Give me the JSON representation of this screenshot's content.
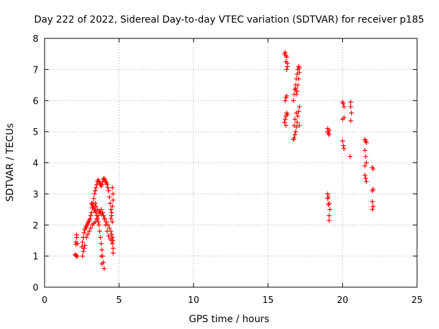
{
  "chart_data": {
    "type": "scatter",
    "title": "Day 222 of 2022, Sidereal Day-to-day VTEC variation (SDTVAR) for receiver p185",
    "xlabel": "GPS time / hours",
    "ylabel": "SDTVAR / TECUs",
    "xlim": [
      0,
      25
    ],
    "ylim": [
      0,
      8
    ],
    "xticks": [
      0,
      5,
      10,
      15,
      20,
      25
    ],
    "yticks": [
      0,
      1,
      2,
      3,
      4,
      5,
      6,
      7,
      8
    ],
    "grid": true,
    "marker": "+",
    "color": "#ff0000",
    "series": [
      {
        "name": "SDTVAR",
        "points": [
          [
            2.05,
            1.05
          ],
          [
            2.1,
            1.02
          ],
          [
            2.15,
            1.0
          ],
          [
            2.2,
            1.0
          ],
          [
            2.1,
            1.38
          ],
          [
            2.1,
            1.45
          ],
          [
            2.15,
            1.6
          ],
          [
            2.15,
            1.68
          ],
          [
            2.2,
            1.4
          ],
          [
            2.5,
            1.3
          ],
          [
            2.55,
            1.45
          ],
          [
            2.6,
            1.6
          ],
          [
            2.65,
            1.75
          ],
          [
            2.7,
            1.85
          ],
          [
            2.75,
            1.9
          ],
          [
            2.8,
            1.95
          ],
          [
            2.85,
            2.0
          ],
          [
            2.9,
            2.05
          ],
          [
            2.95,
            2.1
          ],
          [
            3.0,
            2.15
          ],
          [
            3.05,
            2.2
          ],
          [
            3.1,
            2.3
          ],
          [
            3.15,
            2.4
          ],
          [
            3.2,
            2.55
          ],
          [
            3.25,
            2.7
          ],
          [
            3.3,
            2.85
          ],
          [
            3.35,
            3.0
          ],
          [
            3.4,
            3.1
          ],
          [
            3.45,
            3.2
          ],
          [
            3.5,
            3.3
          ],
          [
            3.55,
            3.4
          ],
          [
            3.6,
            3.45
          ],
          [
            3.65,
            3.4
          ],
          [
            3.7,
            3.35
          ],
          [
            3.75,
            3.3
          ],
          [
            3.8,
            3.25
          ],
          [
            3.85,
            3.3
          ],
          [
            3.9,
            3.4
          ],
          [
            3.95,
            3.48
          ],
          [
            4.0,
            3.5
          ],
          [
            4.05,
            3.45
          ],
          [
            4.1,
            3.4
          ],
          [
            4.15,
            3.35
          ],
          [
            4.2,
            3.3
          ],
          [
            4.25,
            3.2
          ],
          [
            4.3,
            3.1
          ],
          [
            4.35,
            2.9
          ],
          [
            4.4,
            2.7
          ],
          [
            4.45,
            2.5
          ],
          [
            4.5,
            2.3
          ],
          [
            4.55,
            2.1
          ],
          [
            2.55,
            1.0
          ],
          [
            2.6,
            1.15
          ],
          [
            2.65,
            1.25
          ],
          [
            2.7,
            1.35
          ],
          [
            2.8,
            1.6
          ],
          [
            2.9,
            1.7
          ],
          [
            3.0,
            1.8
          ],
          [
            3.1,
            1.9
          ],
          [
            3.2,
            2.0
          ],
          [
            3.3,
            2.05
          ],
          [
            3.4,
            2.1
          ],
          [
            3.5,
            2.2
          ],
          [
            3.6,
            2.3
          ],
          [
            3.7,
            2.4
          ],
          [
            3.8,
            2.5
          ],
          [
            3.9,
            2.4
          ],
          [
            4.0,
            2.2
          ],
          [
            4.1,
            2.0
          ],
          [
            4.2,
            1.8
          ],
          [
            4.3,
            1.65
          ],
          [
            4.4,
            1.55
          ],
          [
            4.5,
            1.5
          ],
          [
            4.55,
            1.4
          ],
          [
            3.15,
            2.7
          ],
          [
            3.2,
            2.65
          ],
          [
            3.25,
            2.6
          ],
          [
            3.3,
            2.55
          ],
          [
            3.35,
            2.5
          ],
          [
            3.4,
            2.45
          ],
          [
            3.45,
            2.4
          ],
          [
            3.5,
            2.3
          ],
          [
            3.55,
            2.2
          ],
          [
            3.6,
            2.1
          ],
          [
            3.65,
            2.0
          ],
          [
            3.7,
            1.8
          ],
          [
            3.75,
            1.6
          ],
          [
            3.8,
            1.4
          ],
          [
            3.85,
            1.2
          ],
          [
            3.9,
            1.0
          ],
          [
            3.95,
            0.8
          ],
          [
            4.0,
            0.6
          ],
          [
            3.8,
            1.0
          ],
          [
            3.85,
            0.75
          ],
          [
            3.4,
            2.7
          ],
          [
            3.45,
            2.6
          ],
          [
            3.55,
            2.5
          ],
          [
            3.65,
            2.45
          ],
          [
            3.75,
            2.4
          ],
          [
            3.85,
            2.35
          ],
          [
            3.95,
            2.3
          ],
          [
            4.05,
            2.2
          ],
          [
            4.15,
            2.1
          ],
          [
            4.25,
            2.0
          ],
          [
            4.35,
            1.9
          ],
          [
            4.45,
            1.8
          ],
          [
            4.5,
            1.7
          ],
          [
            4.55,
            1.6
          ],
          [
            4.6,
            1.5
          ],
          [
            4.6,
            1.25
          ],
          [
            4.6,
            1.1
          ],
          [
            4.45,
            2.2
          ],
          [
            4.5,
            2.4
          ],
          [
            4.55,
            2.6
          ],
          [
            4.6,
            2.8
          ],
          [
            4.6,
            3.0
          ],
          [
            4.55,
            3.2
          ],
          [
            16.1,
            7.5
          ],
          [
            16.15,
            7.55
          ],
          [
            16.2,
            7.45
          ],
          [
            16.25,
            7.4
          ],
          [
            16.3,
            7.2
          ],
          [
            16.3,
            7.1
          ],
          [
            16.25,
            7.0
          ],
          [
            16.2,
            7.25
          ],
          [
            16.1,
            5.3
          ],
          [
            16.15,
            5.4
          ],
          [
            16.2,
            5.5
          ],
          [
            16.25,
            5.6
          ],
          [
            16.3,
            5.55
          ],
          [
            16.2,
            5.2
          ],
          [
            16.15,
            6.0
          ],
          [
            16.2,
            6.1
          ],
          [
            16.25,
            6.15
          ],
          [
            16.7,
            4.75
          ],
          [
            16.75,
            4.8
          ],
          [
            16.8,
            4.9
          ],
          [
            16.85,
            5.0
          ],
          [
            16.9,
            5.15
          ],
          [
            16.95,
            5.3
          ],
          [
            17.0,
            5.5
          ],
          [
            17.05,
            5.65
          ],
          [
            17.1,
            5.8
          ],
          [
            17.1,
            5.2
          ],
          [
            16.7,
            6.0
          ],
          [
            16.75,
            6.2
          ],
          [
            16.8,
            6.35
          ],
          [
            16.85,
            6.5
          ],
          [
            16.9,
            6.7
          ],
          [
            16.95,
            6.85
          ],
          [
            17.0,
            7.0
          ],
          [
            17.05,
            7.1
          ],
          [
            17.1,
            7.05
          ],
          [
            17.1,
            6.9
          ],
          [
            17.05,
            6.7
          ],
          [
            17.0,
            6.5
          ],
          [
            16.95,
            6.3
          ],
          [
            16.9,
            6.2
          ],
          [
            16.85,
            6.4
          ],
          [
            16.8,
            5.4
          ],
          [
            16.75,
            5.2
          ],
          [
            16.9,
            5.6
          ],
          [
            19.0,
            5.0
          ],
          [
            19.05,
            4.95
          ],
          [
            19.1,
            4.9
          ],
          [
            19.0,
            5.1
          ],
          [
            19.1,
            5.05
          ],
          [
            19.0,
            3.0
          ],
          [
            19.05,
            2.9
          ],
          [
            19.1,
            2.7
          ],
          [
            19.15,
            2.5
          ],
          [
            19.1,
            2.3
          ],
          [
            19.1,
            2.15
          ],
          [
            19.0,
            2.85
          ],
          [
            19.05,
            2.65
          ],
          [
            20.0,
            5.95
          ],
          [
            20.05,
            5.9
          ],
          [
            20.1,
            5.8
          ],
          [
            20.1,
            5.45
          ],
          [
            20.0,
            5.4
          ],
          [
            20.0,
            4.7
          ],
          [
            20.05,
            4.55
          ],
          [
            20.1,
            4.45
          ],
          [
            20.55,
            5.95
          ],
          [
            20.55,
            5.8
          ],
          [
            20.6,
            5.6
          ],
          [
            20.55,
            5.35
          ],
          [
            20.5,
            4.2
          ],
          [
            21.5,
            4.75
          ],
          [
            21.55,
            4.7
          ],
          [
            21.6,
            4.65
          ],
          [
            21.5,
            4.4
          ],
          [
            21.55,
            4.2
          ],
          [
            21.6,
            4.0
          ],
          [
            21.5,
            3.9
          ],
          [
            21.5,
            3.6
          ],
          [
            21.55,
            3.5
          ],
          [
            21.6,
            3.4
          ],
          [
            22.0,
            3.85
          ],
          [
            22.05,
            3.8
          ],
          [
            22.0,
            3.1
          ],
          [
            22.05,
            3.15
          ],
          [
            22.0,
            2.75
          ],
          [
            22.05,
            2.6
          ],
          [
            22.0,
            2.5
          ]
        ]
      }
    ]
  }
}
